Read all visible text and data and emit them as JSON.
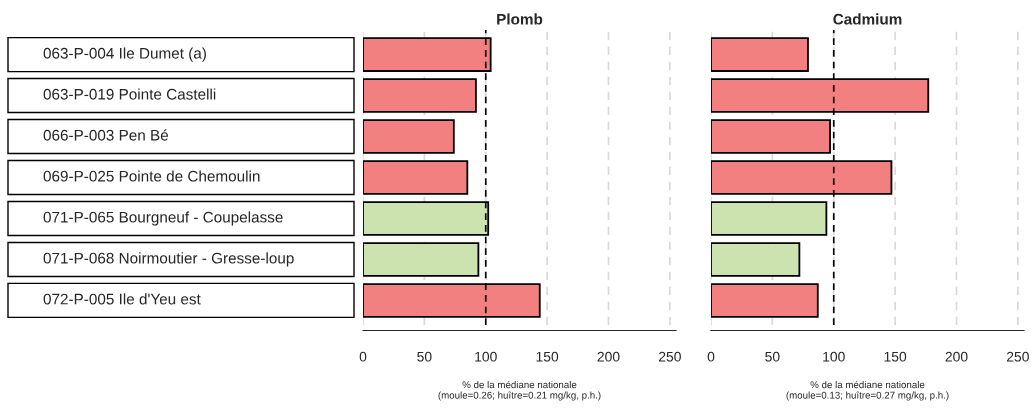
{
  "chart_data": [
    {
      "type": "bar",
      "orientation": "horizontal",
      "title": "Plomb",
      "xlabel": "% de la médiane nationale\n(moule=0.26; huître=0.21 mg/kg, p.h.)",
      "categories": [
        "063-P-004 Ile Dumet (a)",
        "063-P-019 Pointe Castelli",
        "066-P-003 Pen Bé",
        "069-P-025 Pointe de Chemoulin",
        "071-P-065 Bourgneuf - Coupelasse",
        "071-P-068 Noirmoutier - Gresse-loup",
        "072-P-005 Ile d'Yeu est"
      ],
      "values": [
        104,
        92,
        74,
        85,
        102,
        94,
        144
      ],
      "colors": [
        "#f28080",
        "#f28080",
        "#f28080",
        "#f28080",
        "#cce3b0",
        "#cce3b0",
        "#f28080"
      ],
      "xlim": [
        0,
        255
      ],
      "xticks": [
        0,
        50,
        100,
        150,
        200,
        250
      ],
      "grid": "x",
      "ref_lines": [
        {
          "axis": "x",
          "value": 100,
          "color": "#000000",
          "line_style": "dashed"
        }
      ]
    },
    {
      "type": "bar",
      "orientation": "horizontal",
      "title": "Cadmium",
      "xlabel": "% de la médiane nationale\n(moule=0.13; huître=0.27 mg/kg, p.h.)",
      "categories": [
        null,
        null,
        null,
        null,
        null,
        null,
        null
      ],
      "values": [
        79,
        177,
        97,
        147,
        94,
        72,
        87
      ],
      "colors": [
        "#f28080",
        "#f28080",
        "#f28080",
        "#f28080",
        "#cce3b0",
        "#cce3b0",
        "#f28080"
      ],
      "xlim": [
        0,
        255
      ],
      "xticks": [
        0,
        50,
        100,
        150,
        200,
        250
      ],
      "grid": "x",
      "tick_labels": "x",
      "ref_lines": [
        {
          "axis": "x",
          "value": 100,
          "color": "#000000",
          "line_style": "dashed"
        }
      ]
    }
  ]
}
